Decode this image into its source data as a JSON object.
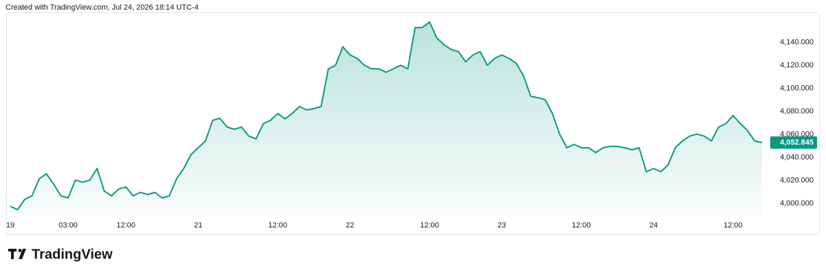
{
  "chart_data": {
    "type": "area",
    "title": "Created with TradingView.com, Jul 24, 2026 18:14 UTC-4",
    "brand": "TradingView",
    "categories": [
      "19",
      null,
      null,
      null,
      null,
      null,
      null,
      null,
      "03:00",
      null,
      null,
      null,
      null,
      null,
      null,
      null,
      "12:00",
      null,
      null,
      null,
      null,
      null,
      null,
      null,
      null,
      null,
      "21",
      null,
      null,
      null,
      null,
      null,
      null,
      null,
      null,
      null,
      null,
      "12:00",
      null,
      null,
      null,
      null,
      null,
      null,
      null,
      null,
      null,
      "22",
      null,
      null,
      null,
      null,
      null,
      null,
      null,
      null,
      null,
      null,
      "12:00",
      null,
      null,
      null,
      null,
      null,
      null,
      null,
      null,
      null,
      "23",
      null,
      null,
      null,
      null,
      null,
      null,
      null,
      null,
      null,
      null,
      "12:00",
      null,
      null,
      null,
      null,
      null,
      null,
      null,
      null,
      null,
      "24",
      null,
      null,
      null,
      null,
      null,
      null,
      null,
      null,
      null,
      null,
      "12:00",
      null,
      null,
      null,
      null
    ],
    "series": [
      {
        "color": "#089981",
        "values": [
          3997.6,
          3994.6,
          4003.6,
          4006.6,
          4021.5,
          4025.7,
          4016.7,
          4006.6,
          4004.8,
          4020.3,
          4018.5,
          4020.3,
          4030.4,
          4010.7,
          4006.6,
          4012.5,
          4014.3,
          4006.6,
          4009.6,
          4007.8,
          4009.6,
          4004.8,
          4006.6,
          4021.5,
          4030.4,
          4042.4,
          4048.4,
          4054.3,
          4072.2,
          4074.0,
          4066.3,
          4064.5,
          4066.3,
          4058.5,
          4056.1,
          4069.3,
          4072.2,
          4078.2,
          4073.4,
          4078.2,
          4084.2,
          4081.2,
          4082.4,
          4084.2,
          4117.0,
          4120.0,
          4136.1,
          4129.0,
          4126.0,
          4120.0,
          4117.0,
          4117.0,
          4114.0,
          4117.0,
          4120.0,
          4117.0,
          4152.8,
          4152.8,
          4157.6,
          4143.9,
          4137.9,
          4133.7,
          4131.9,
          4123.0,
          4129.0,
          4131.9,
          4120.0,
          4126.0,
          4129.0,
          4126.0,
          4121.8,
          4111.0,
          4093.1,
          4091.9,
          4090.1,
          4078.2,
          4060.3,
          4048.4,
          4051.3,
          4048.4,
          4048.4,
          4044.2,
          4048.4,
          4049.6,
          4049.6,
          4048.4,
          4046.6,
          4048.4,
          4027.5,
          4030.4,
          4027.5,
          4033.4,
          4048.4,
          4054.3,
          4058.5,
          4060.3,
          4058.5,
          4054.3,
          4066.3,
          4069.3,
          4076.4,
          4069.3,
          4063.3,
          4054.3,
          4052.845
        ],
        "value_labels": [
          null,
          null,
          null,
          null,
          null,
          null,
          null,
          null,
          null,
          null,
          null,
          null,
          null,
          null,
          null,
          null,
          null,
          null,
          null,
          null,
          null,
          null,
          null,
          null,
          null,
          null,
          null,
          null,
          null,
          null,
          null,
          null,
          null,
          null,
          null,
          null,
          null,
          null,
          null,
          null,
          null,
          null,
          null,
          null,
          null,
          null,
          null,
          null,
          null,
          null,
          null,
          null,
          null,
          null,
          null,
          null,
          null,
          null,
          null,
          null,
          null,
          null,
          null,
          null,
          null,
          null,
          null,
          null,
          null,
          null,
          null,
          null,
          null,
          null,
          null,
          null,
          null,
          null,
          null,
          null,
          null,
          null,
          null,
          null,
          null,
          null,
          null,
          null,
          null,
          null,
          null,
          null,
          null,
          null,
          null,
          null,
          null,
          null,
          null,
          null,
          null,
          null,
          null,
          null,
          "4,052.845"
        ]
      }
    ],
    "ylim": [
      3988.7,
      4164.8
    ],
    "yticks": [
      {
        "value": 4000,
        "label": "4,000.000"
      },
      {
        "value": 4020,
        "label": "4,020.000"
      },
      {
        "value": 4040,
        "label": "4,040.000"
      },
      {
        "value": 4060,
        "label": "4,060.000"
      },
      {
        "value": 4080,
        "label": "4,080.000"
      },
      {
        "value": 4100,
        "label": "4,100.000"
      },
      {
        "value": 4120,
        "label": "4,120.000"
      },
      {
        "value": 4140,
        "label": "4,140.000"
      }
    ],
    "grid": false
  }
}
